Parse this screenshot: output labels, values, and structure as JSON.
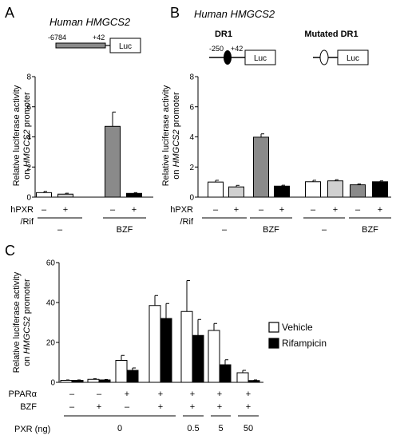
{
  "panels": {
    "A": {
      "letter": "A",
      "title_pre": "Human ",
      "title_gene": "HMGCS2",
      "construct": {
        "left_label": "-6784",
        "right_label": "+42",
        "box_label": "Luc"
      },
      "chart_data": {
        "type": "bar",
        "ylabel_pre": "Relative luciferase activity",
        "ylabel_on": "on ",
        "ylabel_gene": "HMGCS2",
        "ylabel_post": " promoter",
        "ylim": [
          0,
          8
        ],
        "yticks": [
          "0",
          "2",
          "4",
          "6",
          "8"
        ],
        "values": [
          0.3,
          0.2,
          4.7,
          0.25
        ],
        "errors": [
          0.08,
          0.06,
          0.95,
          0.05
        ],
        "colors": [
          "#ffffff",
          "#d0d0d0",
          "#8a8a8a",
          "#000000"
        ],
        "row1_label": "hPXR",
        "row2_label": "/Rif",
        "row1": [
          "–",
          "+",
          "–",
          "+"
        ],
        "groups": [
          "–",
          "BZF"
        ]
      }
    },
    "B": {
      "letter": "B",
      "title_pre": "Human ",
      "title_gene": "HMGCS2",
      "construct1": {
        "title": "DR1",
        "left_label": "-250",
        "right_label": "+42",
        "box_label": "Luc"
      },
      "construct2": {
        "title": "Mutated DR1",
        "box_label": "Luc"
      },
      "chart_data": {
        "type": "bar",
        "ylabel_pre": "Relative luciferase activity",
        "ylabel_on": "on ",
        "ylabel_gene": "HMGCS2",
        "ylabel_post": " promoter",
        "ylim": [
          0,
          8
        ],
        "yticks": [
          "0",
          "2",
          "4",
          "6",
          "8"
        ],
        "values": [
          1.0,
          0.68,
          3.98,
          0.73,
          1.02,
          1.08,
          0.82,
          1.02
        ],
        "errors": [
          0.12,
          0.1,
          0.22,
          0.06,
          0.1,
          0.08,
          0.06,
          0.06
        ],
        "colors": [
          "#ffffff",
          "#d0d0d0",
          "#8a8a8a",
          "#000000",
          "#ffffff",
          "#d0d0d0",
          "#8a8a8a",
          "#000000"
        ],
        "row1_label": "hPXR",
        "row2_label": "/Rif",
        "row1": [
          "–",
          "+",
          "–",
          "+",
          "–",
          "+",
          "–",
          "+"
        ],
        "groups": [
          "–",
          "BZF",
          "–",
          "BZF"
        ]
      }
    },
    "C": {
      "letter": "C",
      "chart_data": {
        "type": "bar",
        "ylabel_pre": "Relative luciferase activity",
        "ylabel_on": "on ",
        "ylabel_gene": "HMGCS2",
        "ylabel_post": " promoter",
        "ylim": [
          0,
          60
        ],
        "yticks": [
          "0",
          "20",
          "40",
          "60"
        ],
        "series": [
          {
            "name": "Vehicle",
            "color": "#ffffff",
            "values": [
              1.0,
              1.5,
              11.0,
              38.5,
              35.5,
              26.0,
              4.8
            ],
            "errors": [
              0.2,
              0.3,
              2.5,
              5.0,
              15.5,
              3.5,
              1.2
            ]
          },
          {
            "name": "Rifampicin",
            "color": "#000000",
            "values": [
              1.0,
              1.2,
              6.0,
              32.0,
              23.5,
              8.8,
              0.9
            ],
            "errors": [
              0.2,
              0.2,
              1.2,
              7.5,
              8.0,
              2.5,
              0.3
            ]
          }
        ],
        "ppar_label": "PPARα",
        "bzf_label": "BZF",
        "pxr_label": "PXR (ng)",
        "ppar": [
          "–",
          "–",
          "+",
          "+",
          "+",
          "+",
          "+"
        ],
        "bzf": [
          "–",
          "+",
          "–",
          "+",
          "+",
          "+",
          "+"
        ],
        "pxr_groups": [
          "0",
          "0.5",
          "5",
          "50"
        ],
        "legend_position": "right"
      }
    }
  }
}
